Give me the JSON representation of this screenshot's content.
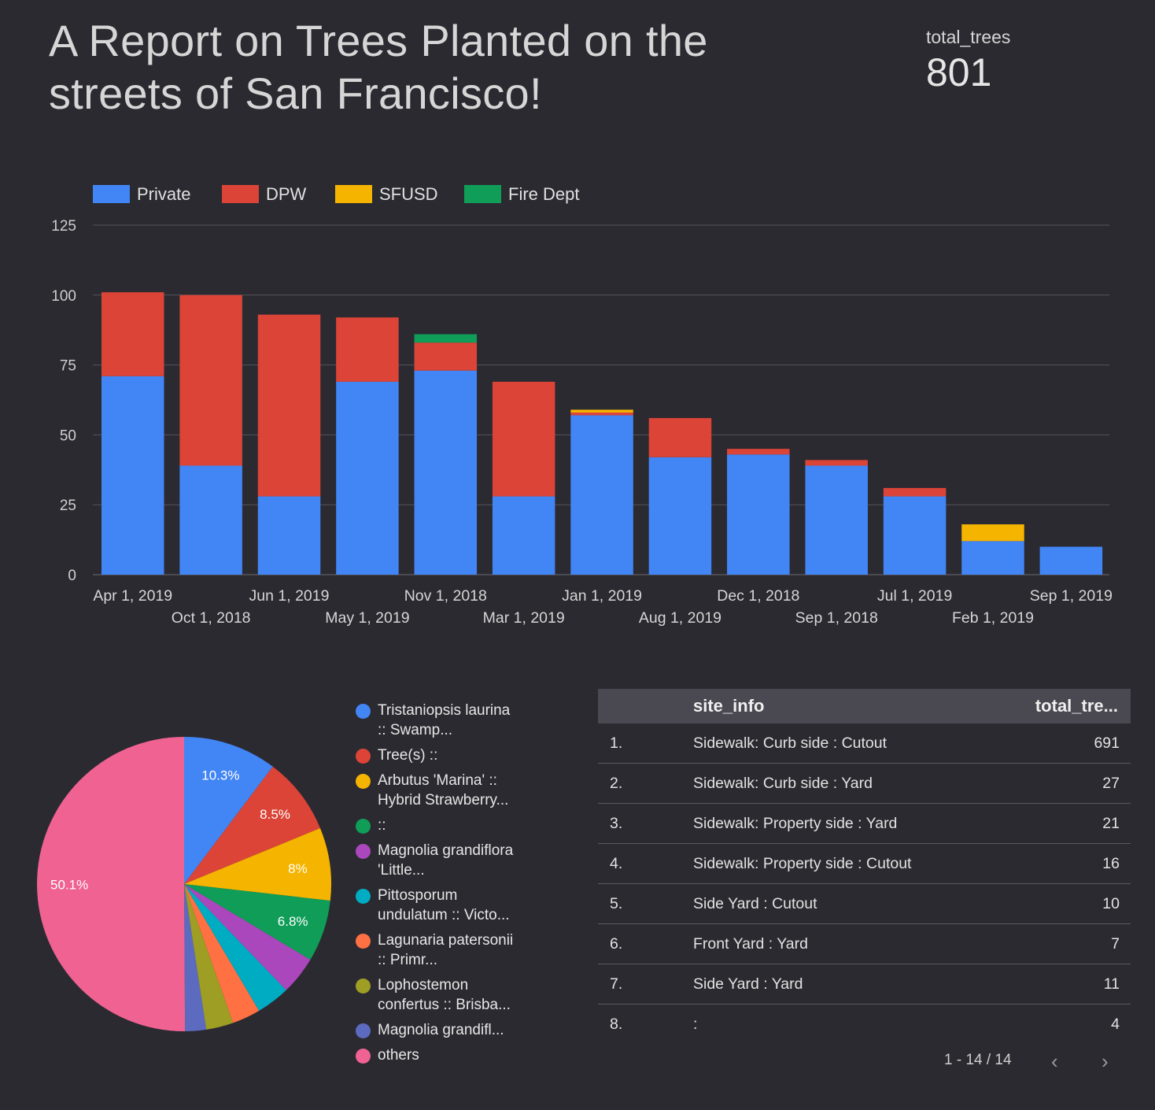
{
  "header": {
    "title": "A Report on Trees Planted on the streets of San Francisco!"
  },
  "scorecard": {
    "label": "total_trees",
    "value": "801"
  },
  "chart_data": [
    {
      "type": "bar",
      "stacked": true,
      "legend_position": "top-left",
      "grid": true,
      "categories": [
        "Apr 1, 2019",
        "Oct 1, 2018",
        "Jun 1, 2019",
        "May 1, 2019",
        "Nov 1, 2018",
        "Mar 1, 2019",
        "Jan 1, 2019",
        "Aug 1, 2019",
        "Dec 1, 2018",
        "Sep 1, 2018",
        "Jul 1, 2019",
        "Feb 1, 2019",
        "Sep 1, 2019"
      ],
      "series": [
        {
          "name": "Private",
          "color": "#4285f4",
          "values": [
            71,
            39,
            28,
            69,
            73,
            28,
            57,
            42,
            43,
            39,
            28,
            12,
            10
          ]
        },
        {
          "name": "DPW",
          "color": "#db4437",
          "values": [
            30,
            61,
            65,
            23,
            10,
            41,
            1,
            14,
            2,
            2,
            3,
            0,
            0
          ]
        },
        {
          "name": "SFUSD",
          "color": "#f4b400",
          "values": [
            0,
            0,
            0,
            0,
            0,
            0,
            1,
            0,
            0,
            0,
            0,
            6,
            0
          ]
        },
        {
          "name": "Fire Dept",
          "color": "#0f9d58",
          "values": [
            0,
            0,
            0,
            0,
            3,
            0,
            0,
            0,
            0,
            0,
            0,
            0,
            0
          ]
        }
      ],
      "ylim": [
        0,
        125
      ],
      "yticks": [
        0,
        25,
        50,
        75,
        100,
        125
      ]
    },
    {
      "type": "pie",
      "slices": [
        {
          "label": "Tristaniopsis laurina :: Swamp...",
          "value": 10.3,
          "color": "#4285f4",
          "show_label": true
        },
        {
          "label": "Tree(s) ::",
          "value": 8.5,
          "color": "#db4437",
          "show_label": true
        },
        {
          "label": "Arbutus 'Marina' :: Hybrid Strawberry...",
          "value": 8,
          "color": "#f4b400",
          "show_label": true
        },
        {
          "label": "::",
          "value": 6.8,
          "color": "#0f9d58",
          "show_label": true
        },
        {
          "label": "Magnolia grandiflora 'Little...",
          "value": 4.2,
          "color": "#ab47bc",
          "show_label": false
        },
        {
          "label": "Pittosporum undulatum :: Victo...",
          "value": 3.7,
          "color": "#00acc1",
          "show_label": false
        },
        {
          "label": "Lagunaria patersonii :: Primr...",
          "value": 3.1,
          "color": "#ff7043",
          "show_label": false
        },
        {
          "label": "Lophostemon confertus :: Brisba...",
          "value": 3.0,
          "color": "#9e9d24",
          "show_label": false
        },
        {
          "label": "Magnolia grandifl...",
          "value": 2.3,
          "color": "#5c6bc0",
          "show_label": false
        },
        {
          "label": "others",
          "value": 50.1,
          "color": "#f06292",
          "show_label": true
        }
      ]
    },
    {
      "type": "table",
      "columns": [
        "site_info",
        "total_tre..."
      ],
      "rows": [
        {
          "idx": "1.",
          "site": "Sidewalk: Curb side : Cutout",
          "total": "691"
        },
        {
          "idx": "2.",
          "site": "Sidewalk: Curb side : Yard",
          "total": "27"
        },
        {
          "idx": "3.",
          "site": "Sidewalk: Property side : Yard",
          "total": "21"
        },
        {
          "idx": "4.",
          "site": "Sidewalk: Property side : Cutout",
          "total": "16"
        },
        {
          "idx": "5.",
          "site": "Side Yard : Cutout",
          "total": "10"
        },
        {
          "idx": "6.",
          "site": "Front Yard : Yard",
          "total": "7"
        },
        {
          "idx": "7.",
          "site": "Side Yard : Yard",
          "total": "11"
        },
        {
          "idx": "8.",
          "site": ":",
          "total": "4"
        }
      ],
      "pagination": "1 - 14 / 14"
    }
  ],
  "icons": {
    "prev": "chevron-left-icon",
    "next": "chevron-right-icon"
  }
}
